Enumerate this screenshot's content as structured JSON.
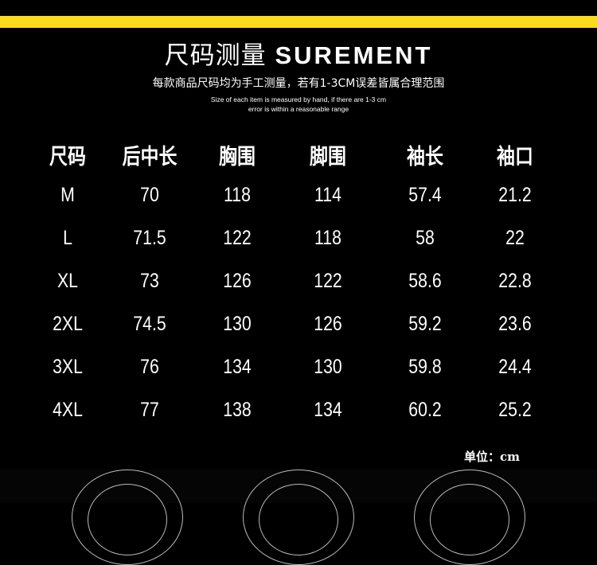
{
  "title_cn": "尺码测量",
  "title_en": "SUREMENT",
  "subtitle": "每款商品尺码均为手工测量，若有1-3CM误差皆属合理范围",
  "note_en_1": "Size of each item is measured by hand, if there are 1-3 cm",
  "note_en_2": "error is within a reasonable range",
  "accent_color": "#fadb1e",
  "table": {
    "headers": [
      "尺码",
      "后中长",
      "胸围",
      "脚围",
      "袖长",
      "袖口"
    ],
    "rows": [
      [
        "M",
        "70",
        "118",
        "114",
        "57.4",
        "21.2"
      ],
      [
        "L",
        "71.5",
        "122",
        "118",
        "58",
        "22"
      ],
      [
        "XL",
        "73",
        "126",
        "122",
        "58.6",
        "22.8"
      ],
      [
        "2XL",
        "74.5",
        "130",
        "126",
        "59.2",
        "23.6"
      ],
      [
        "3XL",
        "76",
        "134",
        "130",
        "59.8",
        "24.4"
      ],
      [
        "4XL",
        "77",
        "138",
        "134",
        "60.2",
        "25.2"
      ]
    ]
  },
  "unit": "单位：cm"
}
